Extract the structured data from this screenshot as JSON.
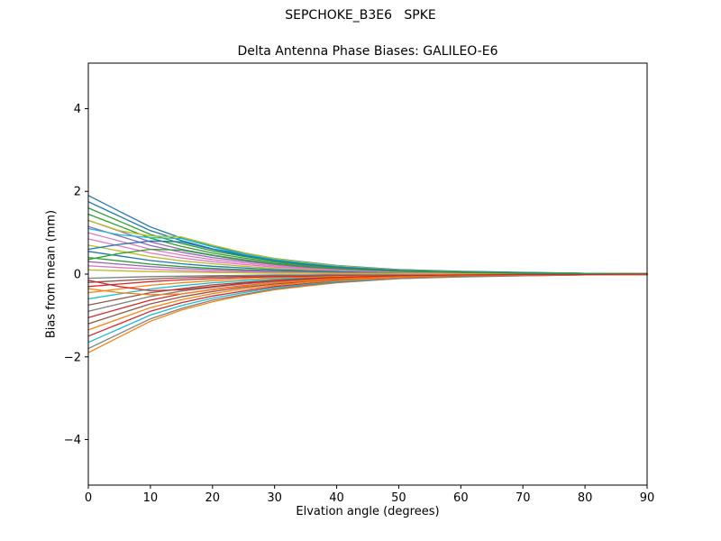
{
  "figure": {
    "suptitle": "SEPCHOKE_B3E6   SPKE",
    "title": "Delta Antenna Phase Biases: GALILEO-E6",
    "xlabel": "Elvation angle (degrees)",
    "ylabel": "Bias from mean (mm)"
  },
  "chart_data": {
    "type": "line",
    "suptitle": "SEPCHOKE_B3E6   SPKE",
    "title": "Delta Antenna Phase Biases: GALILEO-E6",
    "xlabel": "Elvation angle (degrees)",
    "ylabel": "Bias from mean (mm)",
    "xlim": [
      0,
      90
    ],
    "ylim": [
      -5.1,
      5.1
    ],
    "x_ticks": [
      0,
      10,
      20,
      30,
      40,
      50,
      60,
      70,
      80,
      90
    ],
    "y_ticks": [
      -4,
      -2,
      0,
      2,
      4
    ],
    "grid": false,
    "legend": "none",
    "palette": [
      "#1f77b4",
      "#ff7f0e",
      "#2ca02c",
      "#d62728",
      "#9467bd",
      "#8c564b",
      "#e377c2",
      "#7f7f7f",
      "#bcbd22",
      "#17becf"
    ],
    "x": [
      0,
      5,
      10,
      15,
      20,
      25,
      30,
      35,
      40,
      50,
      60,
      70,
      80,
      90
    ],
    "series": [
      {
        "values": [
          1.9,
          1.52,
          1.14,
          0.87,
          0.67,
          0.51,
          0.38,
          0.29,
          0.21,
          0.11,
          0.07,
          0.04,
          0.02,
          0.01
        ]
      },
      {
        "values": [
          -1.9,
          -1.52,
          -1.14,
          -0.87,
          -0.67,
          -0.51,
          -0.38,
          -0.29,
          -0.21,
          -0.11,
          -0.07,
          -0.04,
          -0.02,
          -0.01
        ]
      },
      {
        "values": [
          1.6,
          1.28,
          0.96,
          0.74,
          0.56,
          0.43,
          0.32,
          0.24,
          0.18,
          0.1,
          0.06,
          0.03,
          0.02,
          0.01
        ]
      },
      {
        "values": [
          -1.5,
          -1.2,
          -0.9,
          -0.69,
          -0.53,
          -0.41,
          -0.3,
          -0.23,
          -0.17,
          -0.09,
          -0.05,
          -0.03,
          -0.02,
          -0.01
        ]
      },
      {
        "values": [
          1.3,
          1.04,
          0.78,
          0.6,
          0.46,
          0.35,
          0.26,
          0.2,
          0.14,
          0.08,
          0.05,
          0.03,
          0.02,
          0.01
        ]
      },
      {
        "values": [
          -1.2,
          -0.96,
          -0.72,
          -0.55,
          -0.42,
          -0.32,
          -0.24,
          -0.18,
          -0.13,
          -0.07,
          -0.04,
          -0.02,
          -0.01,
          -0.01
        ]
      },
      {
        "values": [
          1.0,
          0.8,
          0.6,
          0.46,
          0.35,
          0.27,
          0.2,
          0.15,
          0.11,
          0.06,
          0.04,
          0.02,
          0.01,
          0.01
        ]
      },
      {
        "values": [
          -0.9,
          -0.72,
          -0.54,
          -0.41,
          -0.32,
          -0.24,
          -0.18,
          -0.14,
          -0.1,
          -0.05,
          -0.03,
          -0.02,
          -0.01,
          -0.01
        ]
      },
      {
        "values": [
          0.7,
          0.56,
          0.42,
          0.32,
          0.25,
          0.19,
          0.14,
          0.11,
          0.08,
          0.04,
          0.02,
          0.01,
          0.01,
          0
        ]
      },
      {
        "values": [
          -0.6,
          -0.48,
          -0.36,
          -0.28,
          -0.21,
          -0.16,
          -0.12,
          -0.09,
          -0.07,
          -0.04,
          -0.02,
          -0.01,
          -0.01,
          0
        ]
      },
      {
        "values": [
          0.55,
          0.44,
          0.33,
          0.25,
          0.19,
          0.15,
          0.11,
          0.08,
          0.06,
          0.03,
          0.02,
          0.01,
          0.01,
          0
        ]
      },
      {
        "values": [
          -0.45,
          -0.36,
          -0.27,
          -0.21,
          -0.16,
          -0.12,
          -0.09,
          -0.07,
          -0.05,
          -0.03,
          -0.02,
          -0.01,
          -0.01,
          0
        ]
      },
      {
        "values": [
          0.4,
          0.32,
          0.24,
          0.18,
          0.14,
          0.11,
          0.08,
          0.06,
          0.04,
          0.02,
          0.01,
          0.01,
          0,
          0
        ]
      },
      {
        "values": [
          -0.3,
          -0.24,
          -0.18,
          -0.14,
          -0.11,
          -0.08,
          -0.06,
          -0.05,
          -0.03,
          -0.02,
          -0.01,
          -0.01,
          0,
          0
        ]
      },
      {
        "values": [
          0.3,
          0.24,
          0.18,
          0.14,
          0.11,
          0.08,
          0.06,
          0.05,
          0.03,
          0.02,
          0.01,
          0.01,
          0,
          0
        ]
      },
      {
        "values": [
          -0.2,
          -0.16,
          -0.12,
          -0.09,
          -0.07,
          -0.05,
          -0.04,
          -0.03,
          -0.02,
          -0.01,
          -0.01,
          0,
          0,
          0
        ]
      },
      {
        "values": [
          0.2,
          0.16,
          0.12,
          0.09,
          0.07,
          0.05,
          0.04,
          0.03,
          0.02,
          0.01,
          0.01,
          0,
          0,
          0
        ]
      },
      {
        "values": [
          -0.1,
          -0.08,
          -0.06,
          -0.05,
          -0.04,
          -0.03,
          -0.02,
          -0.02,
          -0.01,
          -0.01,
          0,
          0,
          0,
          0
        ]
      },
      {
        "values": [
          0.1,
          0.08,
          0.06,
          0.05,
          0.04,
          0.03,
          0.02,
          0.02,
          0.01,
          0.01,
          0,
          0,
          0,
          0
        ]
      },
      {
        "values": [
          -1.65,
          -1.32,
          -0.99,
          -0.76,
          -0.58,
          -0.45,
          -0.33,
          -0.25,
          -0.18,
          -0.1,
          -0.06,
          -0.03,
          -0.02,
          -0.01
        ]
      },
      {
        "values": [
          1.75,
          1.4,
          1.05,
          0.81,
          0.61,
          0.47,
          0.35,
          0.26,
          0.19,
          0.11,
          0.06,
          0.04,
          0.02,
          0.01
        ]
      },
      {
        "values": [
          -1.35,
          -1.08,
          -0.81,
          -0.62,
          -0.47,
          -0.36,
          -0.27,
          -0.2,
          -0.15,
          -0.08,
          -0.05,
          -0.03,
          -0.02,
          -0.01
        ]
      },
      {
        "values": [
          1.45,
          1.16,
          0.87,
          0.67,
          0.51,
          0.39,
          0.29,
          0.22,
          0.16,
          0.09,
          0.05,
          0.03,
          0.02,
          0.01
        ]
      },
      {
        "values": [
          -1.05,
          -0.84,
          -0.63,
          -0.48,
          -0.37,
          -0.28,
          -0.21,
          -0.16,
          -0.12,
          -0.06,
          -0.04,
          -0.02,
          -0.01,
          -0.01
        ]
      },
      {
        "values": [
          1.15,
          0.92,
          0.69,
          0.53,
          0.4,
          0.31,
          0.23,
          0.17,
          0.13,
          0.07,
          0.04,
          0.02,
          0.01,
          0.01
        ]
      },
      {
        "values": [
          -0.75,
          -0.6,
          -0.45,
          -0.35,
          -0.26,
          -0.2,
          -0.15,
          -0.11,
          -0.08,
          -0.05,
          -0.03,
          -0.02,
          -0.01,
          0
        ]
      },
      {
        "values": [
          0.85,
          0.68,
          0.51,
          0.39,
          0.3,
          0.23,
          0.17,
          0.13,
          0.09,
          0.05,
          0.03,
          0.02,
          0.01,
          0.01
        ]
      },
      {
        "values": [
          -1.8,
          -1.44,
          -1.08,
          -0.83,
          -0.63,
          -0.49,
          -0.36,
          -0.27,
          -0.2,
          -0.11,
          -0.06,
          -0.04,
          -0.02,
          -0.01
        ]
      },
      {
        "values": [
          1.3,
          1.05,
          0.92,
          0.9,
          0.7,
          0.52,
          0.38,
          0.28,
          0.2,
          0.1,
          0.06,
          0.03,
          0.02,
          0.01
        ]
      },
      {
        "values": [
          1.1,
          0.95,
          0.88,
          0.86,
          0.66,
          0.48,
          0.35,
          0.26,
          0.18,
          0.09,
          0.05,
          0.03,
          0.02,
          0.01
        ]
      },
      {
        "values": [
          0.6,
          0.72,
          0.8,
          0.78,
          0.6,
          0.45,
          0.33,
          0.24,
          0.17,
          0.09,
          0.05,
          0.03,
          0.01,
          0.01
        ]
      },
      {
        "values": [
          -0.35,
          -0.45,
          -0.5,
          -0.48,
          -0.38,
          -0.29,
          -0.21,
          -0.16,
          -0.11,
          -0.06,
          -0.03,
          -0.02,
          -0.01,
          0
        ]
      },
      {
        "values": [
          0.35,
          0.5,
          0.6,
          0.58,
          0.45,
          0.34,
          0.25,
          0.18,
          0.13,
          0.07,
          0.04,
          0.02,
          0.01,
          0.01
        ]
      },
      {
        "values": [
          -0.15,
          -0.3,
          -0.4,
          -0.38,
          -0.3,
          -0.22,
          -0.16,
          -0.12,
          -0.08,
          -0.04,
          -0.02,
          -0.01,
          -0.01,
          0
        ]
      }
    ]
  }
}
